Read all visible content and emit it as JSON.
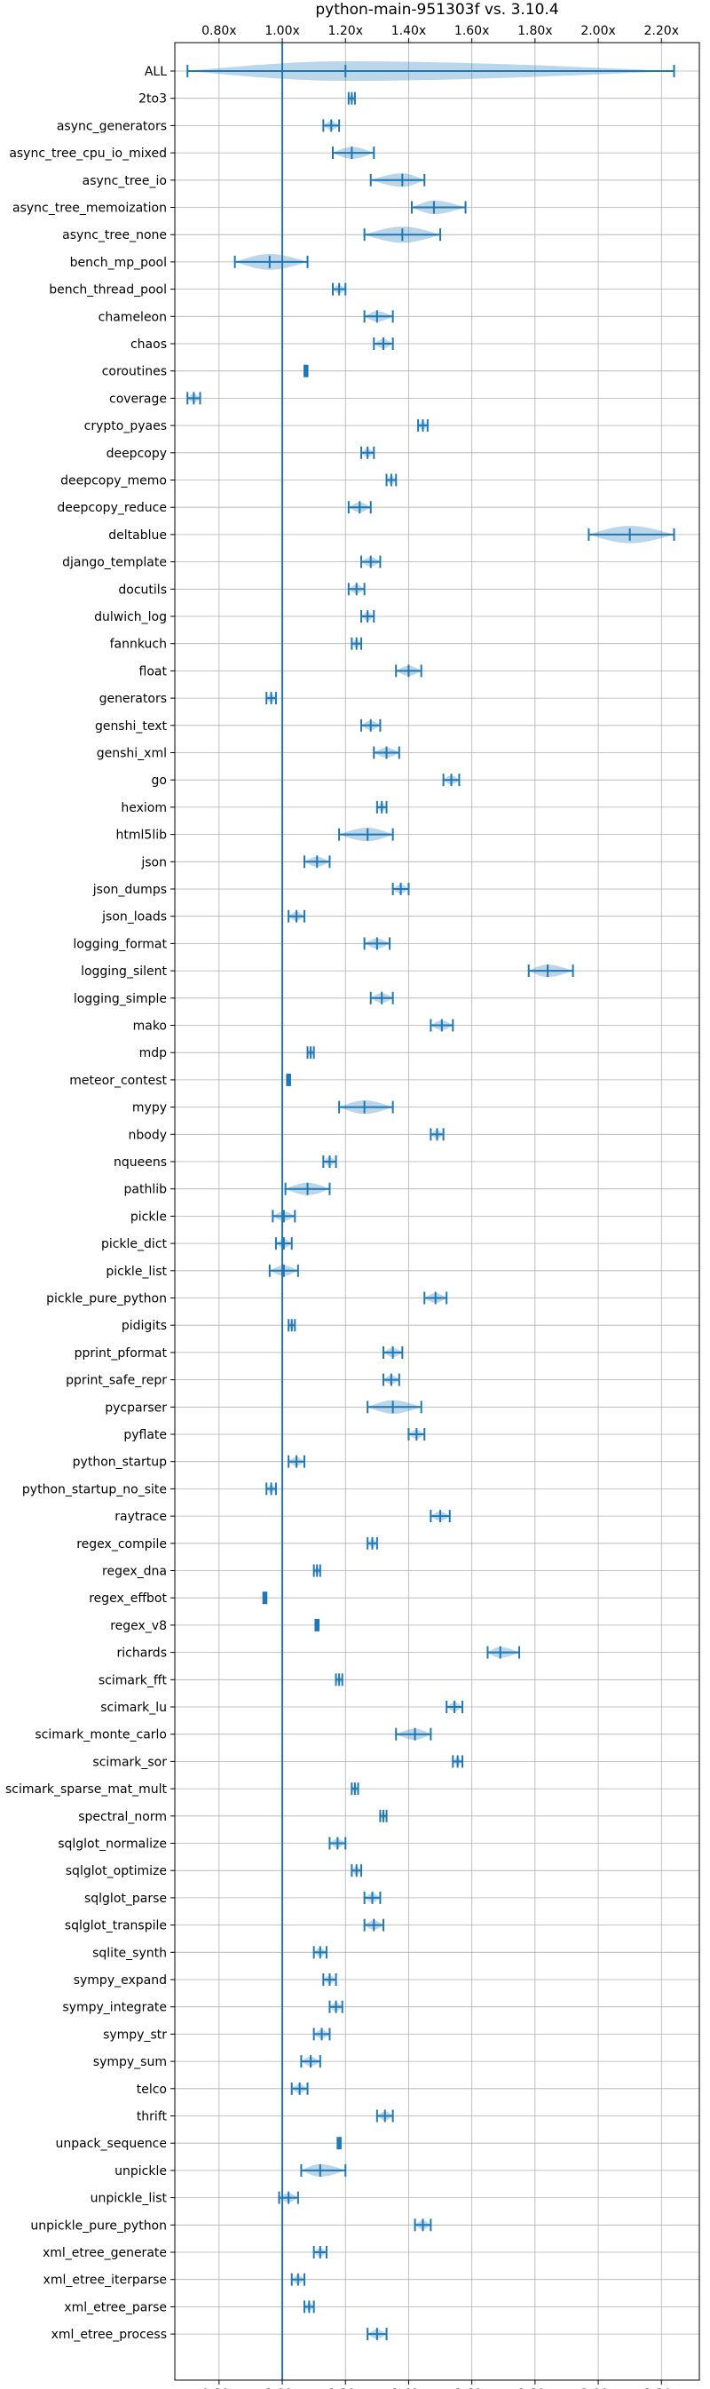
{
  "chart_data": {
    "type": "violin",
    "title": "python-main-951303f vs. 3.10.4",
    "xlabel": "",
    "ylabel": "",
    "xlim": [
      0.66,
      2.32
    ],
    "x_ticks": [
      0.8,
      1.0,
      1.2,
      1.4,
      1.6,
      1.8,
      2.0,
      2.2
    ],
    "x_tick_labels": [
      "0.80x",
      "1.00x",
      "1.20x",
      "1.40x",
      "1.60x",
      "1.80x",
      "2.00x",
      "2.20x"
    ],
    "reference_line": 1.0,
    "grid": true,
    "categories": [
      {
        "name": "ALL",
        "min": 0.7,
        "max": 2.24,
        "mean": 1.2,
        "median": 1.2
      },
      {
        "name": "2to3",
        "min": 1.21,
        "max": 1.23,
        "mean": 1.22,
        "median": 1.22
      },
      {
        "name": "async_generators",
        "min": 1.13,
        "max": 1.18,
        "mean": 1.155,
        "median": 1.155
      },
      {
        "name": "async_tree_cpu_io_mixed",
        "min": 1.16,
        "max": 1.29,
        "mean": 1.22,
        "median": 1.22
      },
      {
        "name": "async_tree_io",
        "min": 1.28,
        "max": 1.45,
        "mean": 1.38,
        "median": 1.38
      },
      {
        "name": "async_tree_memoization",
        "min": 1.41,
        "max": 1.58,
        "mean": 1.48,
        "median": 1.48
      },
      {
        "name": "async_tree_none",
        "min": 1.26,
        "max": 1.5,
        "mean": 1.38,
        "median": 1.38
      },
      {
        "name": "bench_mp_pool",
        "min": 0.85,
        "max": 1.08,
        "mean": 0.96,
        "median": 0.96
      },
      {
        "name": "bench_thread_pool",
        "min": 1.16,
        "max": 1.2,
        "mean": 1.18,
        "median": 1.18
      },
      {
        "name": "chameleon",
        "min": 1.26,
        "max": 1.35,
        "mean": 1.3,
        "median": 1.3
      },
      {
        "name": "chaos",
        "min": 1.29,
        "max": 1.35,
        "mean": 1.32,
        "median": 1.32
      },
      {
        "name": "coroutines",
        "min": 1.07,
        "max": 1.08,
        "mean": 1.075,
        "median": 1.075
      },
      {
        "name": "coverage",
        "min": 0.7,
        "max": 0.74,
        "mean": 0.72,
        "median": 0.72
      },
      {
        "name": "crypto_pyaes",
        "min": 1.43,
        "max": 1.46,
        "mean": 1.445,
        "median": 1.445
      },
      {
        "name": "deepcopy",
        "min": 1.25,
        "max": 1.29,
        "mean": 1.27,
        "median": 1.27
      },
      {
        "name": "deepcopy_memo",
        "min": 1.33,
        "max": 1.36,
        "mean": 1.345,
        "median": 1.345
      },
      {
        "name": "deepcopy_reduce",
        "min": 1.21,
        "max": 1.28,
        "mean": 1.245,
        "median": 1.245
      },
      {
        "name": "deltablue",
        "min": 1.97,
        "max": 2.24,
        "mean": 2.1,
        "median": 2.1
      },
      {
        "name": "django_template",
        "min": 1.25,
        "max": 1.31,
        "mean": 1.28,
        "median": 1.28
      },
      {
        "name": "docutils",
        "min": 1.21,
        "max": 1.26,
        "mean": 1.235,
        "median": 1.235
      },
      {
        "name": "dulwich_log",
        "min": 1.25,
        "max": 1.29,
        "mean": 1.27,
        "median": 1.27
      },
      {
        "name": "fannkuch",
        "min": 1.22,
        "max": 1.25,
        "mean": 1.235,
        "median": 1.235
      },
      {
        "name": "float",
        "min": 1.36,
        "max": 1.44,
        "mean": 1.4,
        "median": 1.4
      },
      {
        "name": "generators",
        "min": 0.95,
        "max": 0.98,
        "mean": 0.965,
        "median": 0.965
      },
      {
        "name": "genshi_text",
        "min": 1.25,
        "max": 1.31,
        "mean": 1.28,
        "median": 1.28
      },
      {
        "name": "genshi_xml",
        "min": 1.29,
        "max": 1.37,
        "mean": 1.33,
        "median": 1.33
      },
      {
        "name": "go",
        "min": 1.51,
        "max": 1.56,
        "mean": 1.535,
        "median": 1.535
      },
      {
        "name": "hexiom",
        "min": 1.3,
        "max": 1.33,
        "mean": 1.315,
        "median": 1.315
      },
      {
        "name": "html5lib",
        "min": 1.18,
        "max": 1.35,
        "mean": 1.27,
        "median": 1.27
      },
      {
        "name": "json",
        "min": 1.07,
        "max": 1.15,
        "mean": 1.11,
        "median": 1.11
      },
      {
        "name": "json_dumps",
        "min": 1.35,
        "max": 1.4,
        "mean": 1.375,
        "median": 1.375
      },
      {
        "name": "json_loads",
        "min": 1.02,
        "max": 1.07,
        "mean": 1.045,
        "median": 1.045
      },
      {
        "name": "logging_format",
        "min": 1.26,
        "max": 1.34,
        "mean": 1.3,
        "median": 1.3
      },
      {
        "name": "logging_silent",
        "min": 1.78,
        "max": 1.92,
        "mean": 1.84,
        "median": 1.84
      },
      {
        "name": "logging_simple",
        "min": 1.28,
        "max": 1.35,
        "mean": 1.315,
        "median": 1.315
      },
      {
        "name": "mako",
        "min": 1.47,
        "max": 1.54,
        "mean": 1.505,
        "median": 1.505
      },
      {
        "name": "mdp",
        "min": 1.08,
        "max": 1.1,
        "mean": 1.09,
        "median": 1.09
      },
      {
        "name": "meteor_contest",
        "min": 1.015,
        "max": 1.025,
        "mean": 1.02,
        "median": 1.02
      },
      {
        "name": "mypy",
        "min": 1.18,
        "max": 1.35,
        "mean": 1.26,
        "median": 1.26
      },
      {
        "name": "nbody",
        "min": 1.47,
        "max": 1.51,
        "mean": 1.49,
        "median": 1.49
      },
      {
        "name": "nqueens",
        "min": 1.13,
        "max": 1.17,
        "mean": 1.15,
        "median": 1.15
      },
      {
        "name": "pathlib",
        "min": 1.01,
        "max": 1.15,
        "mean": 1.08,
        "median": 1.08
      },
      {
        "name": "pickle",
        "min": 0.97,
        "max": 1.04,
        "mean": 1.005,
        "median": 1.005
      },
      {
        "name": "pickle_dict",
        "min": 0.98,
        "max": 1.03,
        "mean": 1.005,
        "median": 1.005
      },
      {
        "name": "pickle_list",
        "min": 0.96,
        "max": 1.05,
        "mean": 1.005,
        "median": 1.005
      },
      {
        "name": "pickle_pure_python",
        "min": 1.45,
        "max": 1.52,
        "mean": 1.485,
        "median": 1.485
      },
      {
        "name": "pidigits",
        "min": 1.02,
        "max": 1.04,
        "mean": 1.03,
        "median": 1.03
      },
      {
        "name": "pprint_pformat",
        "min": 1.32,
        "max": 1.38,
        "mean": 1.35,
        "median": 1.35
      },
      {
        "name": "pprint_safe_repr",
        "min": 1.32,
        "max": 1.37,
        "mean": 1.345,
        "median": 1.345
      },
      {
        "name": "pycparser",
        "min": 1.27,
        "max": 1.44,
        "mean": 1.35,
        "median": 1.35
      },
      {
        "name": "pyflate",
        "min": 1.4,
        "max": 1.45,
        "mean": 1.425,
        "median": 1.425
      },
      {
        "name": "python_startup",
        "min": 1.02,
        "max": 1.07,
        "mean": 1.045,
        "median": 1.045
      },
      {
        "name": "python_startup_no_site",
        "min": 0.95,
        "max": 0.98,
        "mean": 0.965,
        "median": 0.965
      },
      {
        "name": "raytrace",
        "min": 1.47,
        "max": 1.53,
        "mean": 1.5,
        "median": 1.5
      },
      {
        "name": "regex_compile",
        "min": 1.27,
        "max": 1.3,
        "mean": 1.285,
        "median": 1.285
      },
      {
        "name": "regex_dna",
        "min": 1.1,
        "max": 1.12,
        "mean": 1.11,
        "median": 1.11
      },
      {
        "name": "regex_effbot",
        "min": 0.94,
        "max": 0.95,
        "mean": 0.945,
        "median": 0.945
      },
      {
        "name": "regex_v8",
        "min": 1.105,
        "max": 1.115,
        "mean": 1.11,
        "median": 1.11
      },
      {
        "name": "richards",
        "min": 1.65,
        "max": 1.75,
        "mean": 1.69,
        "median": 1.69
      },
      {
        "name": "scimark_fft",
        "min": 1.17,
        "max": 1.19,
        "mean": 1.18,
        "median": 1.18
      },
      {
        "name": "scimark_lu",
        "min": 1.52,
        "max": 1.57,
        "mean": 1.545,
        "median": 1.545
      },
      {
        "name": "scimark_monte_carlo",
        "min": 1.36,
        "max": 1.47,
        "mean": 1.42,
        "median": 1.42
      },
      {
        "name": "scimark_sor",
        "min": 1.54,
        "max": 1.57,
        "mean": 1.555,
        "median": 1.555
      },
      {
        "name": "scimark_sparse_mat_mult",
        "min": 1.22,
        "max": 1.24,
        "mean": 1.23,
        "median": 1.23
      },
      {
        "name": "spectral_norm",
        "min": 1.31,
        "max": 1.33,
        "mean": 1.32,
        "median": 1.32
      },
      {
        "name": "sqlglot_normalize",
        "min": 1.15,
        "max": 1.2,
        "mean": 1.175,
        "median": 1.175
      },
      {
        "name": "sqlglot_optimize",
        "min": 1.22,
        "max": 1.25,
        "mean": 1.235,
        "median": 1.235
      },
      {
        "name": "sqlglot_parse",
        "min": 1.26,
        "max": 1.31,
        "mean": 1.285,
        "median": 1.285
      },
      {
        "name": "sqlglot_transpile",
        "min": 1.26,
        "max": 1.32,
        "mean": 1.29,
        "median": 1.29
      },
      {
        "name": "sqlite_synth",
        "min": 1.1,
        "max": 1.14,
        "mean": 1.12,
        "median": 1.12
      },
      {
        "name": "sympy_expand",
        "min": 1.13,
        "max": 1.17,
        "mean": 1.15,
        "median": 1.15
      },
      {
        "name": "sympy_integrate",
        "min": 1.15,
        "max": 1.19,
        "mean": 1.17,
        "median": 1.17
      },
      {
        "name": "sympy_str",
        "min": 1.1,
        "max": 1.15,
        "mean": 1.125,
        "median": 1.125
      },
      {
        "name": "sympy_sum",
        "min": 1.06,
        "max": 1.12,
        "mean": 1.09,
        "median": 1.09
      },
      {
        "name": "telco",
        "min": 1.03,
        "max": 1.08,
        "mean": 1.055,
        "median": 1.055
      },
      {
        "name": "thrift",
        "min": 1.3,
        "max": 1.35,
        "mean": 1.325,
        "median": 1.325
      },
      {
        "name": "unpack_sequence",
        "min": 1.175,
        "max": 1.185,
        "mean": 1.18,
        "median": 1.18
      },
      {
        "name": "unpickle",
        "min": 1.06,
        "max": 1.2,
        "mean": 1.12,
        "median": 1.12
      },
      {
        "name": "unpickle_list",
        "min": 0.99,
        "max": 1.05,
        "mean": 1.02,
        "median": 1.02
      },
      {
        "name": "unpickle_pure_python",
        "min": 1.42,
        "max": 1.47,
        "mean": 1.445,
        "median": 1.445
      },
      {
        "name": "xml_etree_generate",
        "min": 1.1,
        "max": 1.14,
        "mean": 1.12,
        "median": 1.12
      },
      {
        "name": "xml_etree_iterparse",
        "min": 1.03,
        "max": 1.07,
        "mean": 1.05,
        "median": 1.05
      },
      {
        "name": "xml_etree_parse",
        "min": 1.07,
        "max": 1.1,
        "mean": 1.085,
        "median": 1.085
      },
      {
        "name": "xml_etree_process",
        "min": 1.27,
        "max": 1.33,
        "mean": 1.3,
        "median": 1.3
      }
    ],
    "colors": {
      "series": "#1f77b4",
      "grid": "#b0b0b0",
      "frame": "#000000"
    }
  }
}
